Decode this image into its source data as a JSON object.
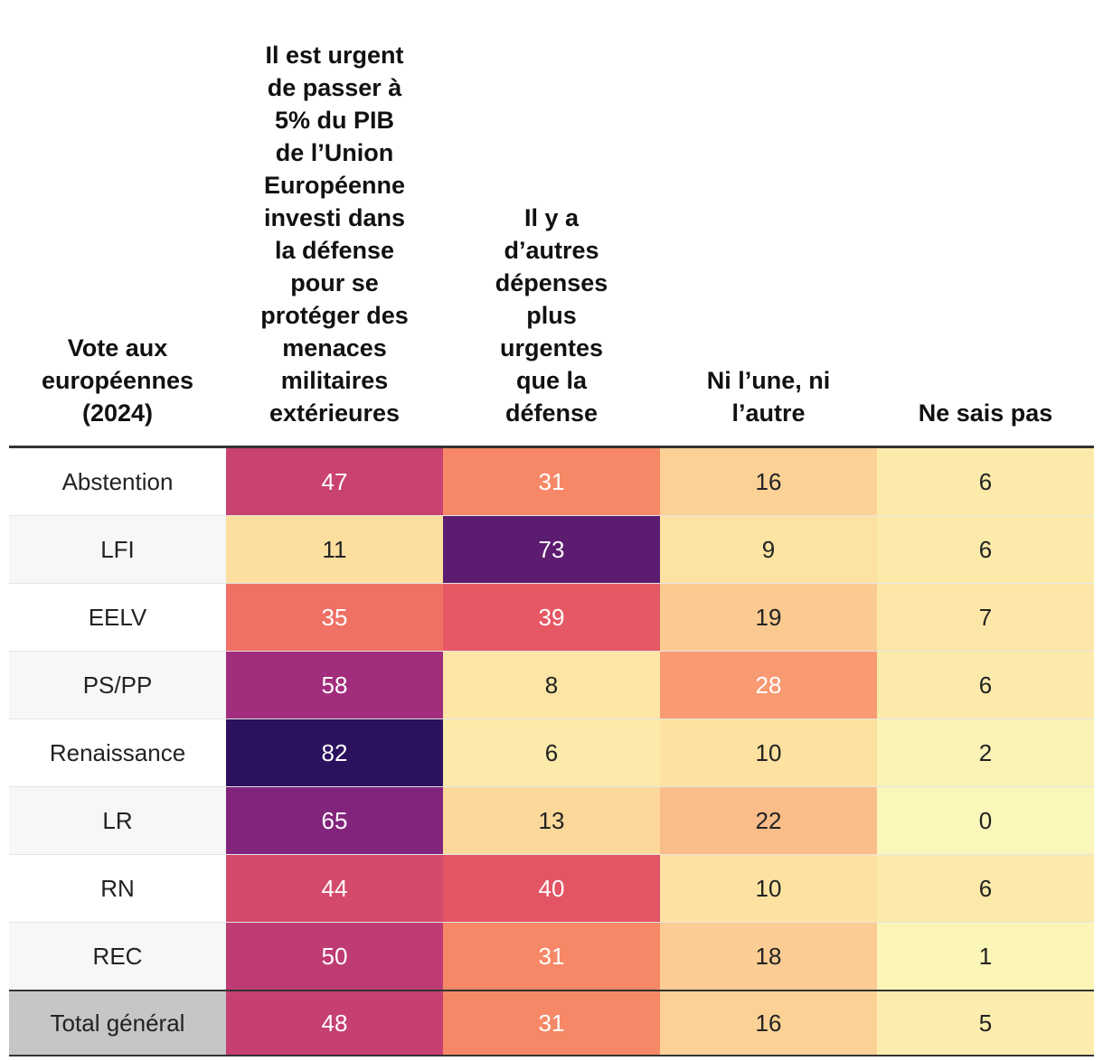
{
  "chart_data": {
    "type": "heatmap",
    "columns": [
      "Vote aux européennes (2024)",
      "Il est urgent de passer à 5% du PIB de l’Union Européenne investi dans la défense pour se protéger des menaces militaires extérieures",
      "Il y a d’autres dépenses plus urgentes que la défense",
      "Ni l’une, ni l’autre",
      "Ne sais pas"
    ],
    "header_lines": [
      "Vote aux\neuropéennes\n(2024)",
      "Il est urgent\nde passer à\n5% du PIB\nde l’Union\nEuropéenne\ninvesti dans\nla défense\npour se\nprotéger des\nmenaces\nmilitaires\nextérieures",
      "Il y a\nd’autres\ndépenses\nplus\nurgentes\nque la\ndéfense",
      "Ni l’une, ni\nl’autre",
      "Ne sais pas"
    ],
    "rows": [
      {
        "label": "Abstention",
        "values": [
          47,
          31,
          16,
          6
        ]
      },
      {
        "label": "LFI",
        "values": [
          11,
          73,
          9,
          6
        ]
      },
      {
        "label": "EELV",
        "values": [
          35,
          39,
          19,
          7
        ]
      },
      {
        "label": "PS/PP",
        "values": [
          58,
          8,
          28,
          6
        ]
      },
      {
        "label": "Renaissance",
        "values": [
          82,
          6,
          10,
          2
        ]
      },
      {
        "label": "LR",
        "values": [
          65,
          13,
          22,
          0
        ]
      },
      {
        "label": "RN",
        "values": [
          44,
          40,
          10,
          6
        ]
      },
      {
        "label": "REC",
        "values": [
          50,
          31,
          18,
          1
        ]
      }
    ],
    "total": {
      "label": "Total général",
      "values": [
        48,
        31,
        16,
        5
      ]
    },
    "value_range": [
      0,
      82
    ],
    "colormap": "magma_r"
  }
}
